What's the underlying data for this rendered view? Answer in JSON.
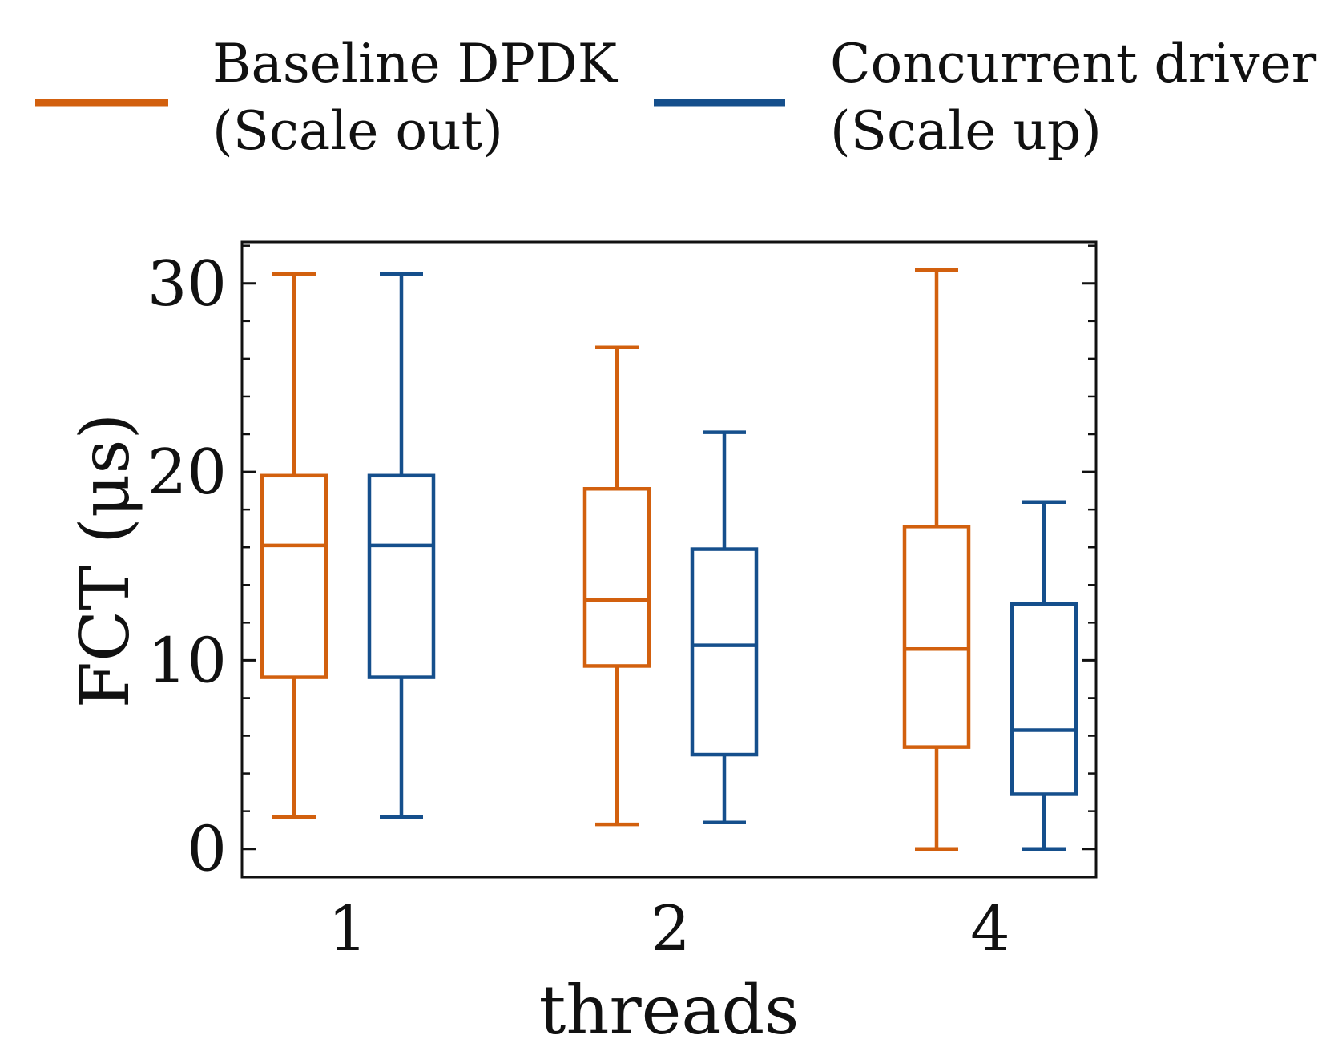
{
  "chart_data": {
    "type": "box",
    "title": "",
    "xlabel": "threads",
    "ylabel": "FCT (μs)",
    "categories": [
      "1",
      "2",
      "4"
    ],
    "ylim": [
      -1.5,
      32.2
    ],
    "yticks": [
      0,
      10,
      20,
      30
    ],
    "yticks_minor": [
      2,
      4,
      6,
      8,
      12,
      14,
      16,
      18,
      22,
      24,
      26,
      28,
      32
    ],
    "grid": false,
    "legend_position": "top",
    "series": [
      {
        "name": "Baseline DPDK (Scale out)",
        "legend_lines": [
          "Baseline DPDK",
          "(Scale out)"
        ],
        "color": "#d2600e",
        "boxes": [
          {
            "category": "1",
            "whisker_low": 1.7,
            "q1": 9.1,
            "median": 16.1,
            "q3": 19.8,
            "whisker_high": 30.5
          },
          {
            "category": "2",
            "whisker_low": 1.3,
            "q1": 9.7,
            "median": 13.2,
            "q3": 19.1,
            "whisker_high": 26.6
          },
          {
            "category": "4",
            "whisker_low": 0.0,
            "q1": 5.4,
            "median": 10.6,
            "q3": 17.1,
            "whisker_high": 30.7
          }
        ]
      },
      {
        "name": "Concurrent driver (Scale up)",
        "legend_lines": [
          "Concurrent driver",
          "(Scale up)"
        ],
        "color": "#154f8c",
        "boxes": [
          {
            "category": "1",
            "whisker_low": 1.7,
            "q1": 9.1,
            "median": 16.1,
            "q3": 19.8,
            "whisker_high": 30.5
          },
          {
            "category": "2",
            "whisker_low": 1.4,
            "q1": 5.0,
            "median": 10.8,
            "q3": 15.9,
            "whisker_high": 22.1
          },
          {
            "category": "4",
            "whisker_low": 0.0,
            "q1": 2.9,
            "median": 6.3,
            "q3": 13.0,
            "whisker_high": 18.4
          }
        ]
      }
    ]
  }
}
